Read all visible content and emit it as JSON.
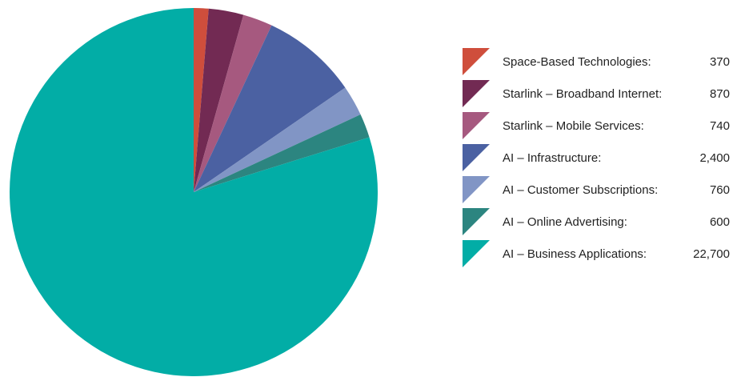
{
  "chart_data": {
    "type": "pie",
    "legend_position": "right",
    "slices": [
      {
        "label": "Space-Based Technologies:",
        "value": 370,
        "value_label": "370",
        "color": "#cf4e3c"
      },
      {
        "label": "Starlink – Broadband Internet:",
        "value": 870,
        "value_label": "870",
        "color": "#722a53"
      },
      {
        "label": "Starlink – Mobile Services:",
        "value": 740,
        "value_label": "740",
        "color": "#a6597f"
      },
      {
        "label": "AI – Infrastructure:",
        "value": 2400,
        "value_label": "2,400",
        "color": "#4b61a2"
      },
      {
        "label": "AI – Customer Subscriptions:",
        "value": 760,
        "value_label": "760",
        "color": "#8195c5"
      },
      {
        "label": "AI – Online Advertising:",
        "value": 600,
        "value_label": "600",
        "color": "#2c8580"
      },
      {
        "label": "AI – Business Applications:",
        "value": 22700,
        "value_label": "22,700",
        "color": "#02ada6"
      }
    ]
  }
}
